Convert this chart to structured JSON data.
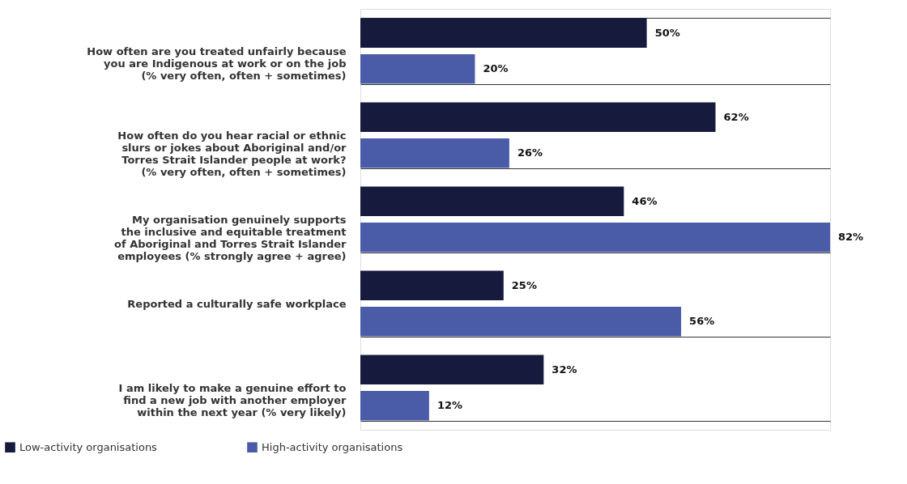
{
  "chart_data": {
    "type": "bar",
    "orientation": "horizontal",
    "categories": [
      "How often are you treated unfairly because\nyou are Indigenous at work or on the job\n(% very often, often + sometimes)",
      "How often do you hear racial or ethnic\nslurs or jokes about Aboriginal and/or\nTorres Strait Islander people at work?\n(% very often, often + sometimes)",
      "My organisation genuinely supports\nthe inclusive and equitable treatment\nof Aboriginal and Torres Strait Islander\nemployees (% strongly agree + agree)",
      "Reported a culturally safe workplace",
      "I am likely to make a genuine effort to\nfind a new job with another employer\nwithin the next year (% very likely)"
    ],
    "series": [
      {
        "name": "Low-activity organisations",
        "color": "#161b3d",
        "values": [
          50,
          62,
          46,
          25,
          32
        ],
        "value_labels": [
          "50%",
          "62%",
          "46%",
          "25%",
          "32%"
        ]
      },
      {
        "name": "High-activity organisations",
        "color": "#4a5ca8",
        "values": [
          20,
          26,
          82,
          56,
          12
        ],
        "value_labels": [
          "20%",
          "26%",
          "82%",
          "56%",
          "12%"
        ]
      }
    ],
    "grid": "y",
    "legend": "bottom left"
  }
}
